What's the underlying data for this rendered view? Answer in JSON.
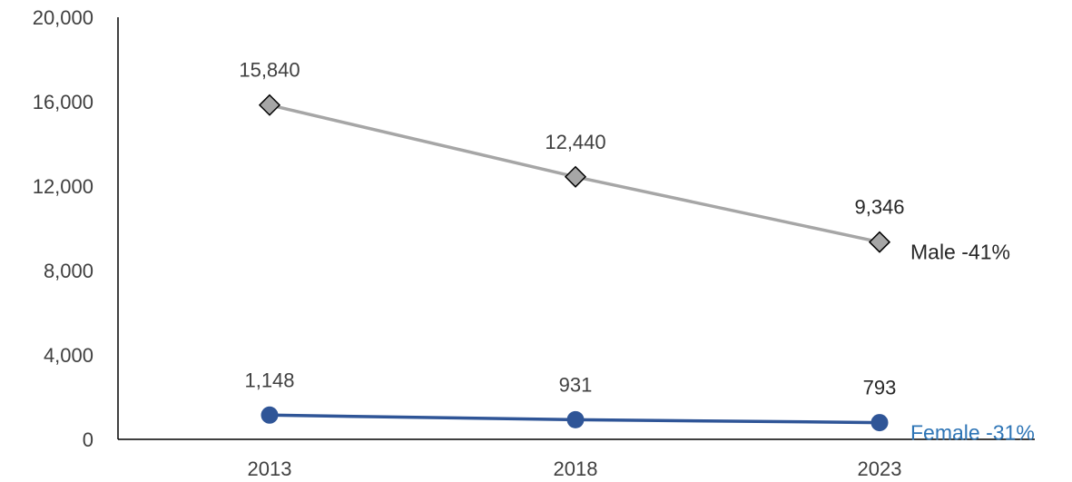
{
  "chart_data": {
    "type": "line",
    "categories": [
      "2013",
      "2018",
      "2023"
    ],
    "ylim": [
      0,
      20000
    ],
    "yticks": [
      0,
      4000,
      8000,
      12000,
      16000,
      20000
    ],
    "ytick_labels": [
      "0",
      "4,000",
      "8,000",
      "12,000",
      "16,000",
      "20,000"
    ],
    "grid": false,
    "series": [
      {
        "name": "Male -41%",
        "values": [
          15840,
          12440,
          9346
        ],
        "data_labels": [
          "15,840",
          "12,440",
          "9,346"
        ],
        "color": "#A6A6A6",
        "marker": "diamond",
        "marker_color": "#A6A6A6",
        "name_color": "#262626"
      },
      {
        "name": "Female -31%",
        "values": [
          1148,
          931,
          793
        ],
        "data_labels": [
          "1,148",
          "931",
          "793"
        ],
        "color": "#2F5597",
        "marker": "circle",
        "marker_color": "#2F5597",
        "name_color": "#2E75B6"
      }
    ]
  }
}
